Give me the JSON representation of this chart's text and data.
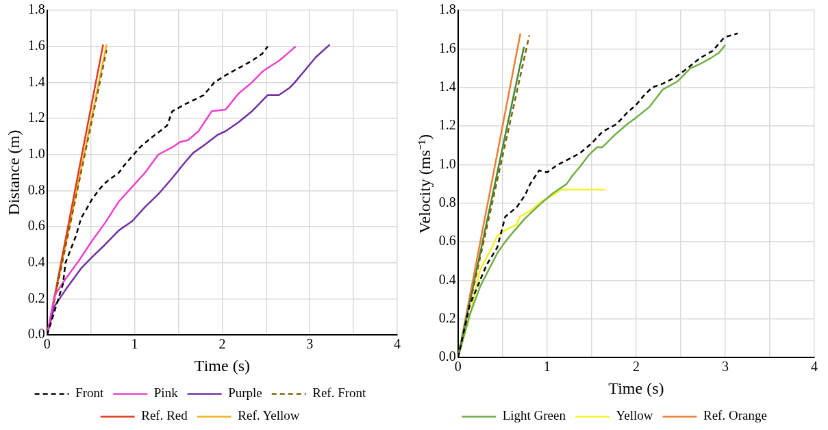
{
  "chart_data": [
    {
      "type": "line",
      "xlabel": "Time (s)",
      "ylabel": "Distance (m)",
      "xlim": [
        0,
        4
      ],
      "ylim": [
        0,
        1.8
      ],
      "xticks": [
        0,
        {
          "value": 0.5,
          "label": null
        },
        1,
        {
          "value": 1.5,
          "label": null
        },
        2,
        {
          "value": 2.5,
          "label": null
        },
        3,
        {
          "value": 3.5,
          "label": null
        },
        4
      ],
      "yticks": [
        {
          "value": 0,
          "label": "0.0"
        },
        {
          "value": 0.2,
          "label": "0.2"
        },
        {
          "value": 0.4,
          "label": "0.4"
        },
        {
          "value": 0.6,
          "label": "0.6"
        },
        {
          "value": 0.8,
          "label": "0.8"
        },
        {
          "value": 1,
          "label": "1.0"
        },
        {
          "value": 1.2,
          "label": "1.2"
        },
        {
          "value": 1.4,
          "label": "1.4"
        },
        {
          "value": 1.6,
          "label": "1.6"
        },
        {
          "value": 1.8,
          "label": "1.8"
        }
      ],
      "grid": true,
      "legend": "bottom",
      "marker": "none",
      "series": [
        {
          "name": "Front",
          "color": "#000000",
          "line_style": "dashed",
          "x": [
            0,
            0.18,
            0.21,
            0.33,
            0.39,
            0.44,
            0.51,
            0.6,
            0.68,
            0.82,
            0.88,
            0.97,
            1.06,
            1.18,
            1.37,
            1.43,
            1.58,
            1.79,
            1.91,
            2.04,
            2.19,
            2.34,
            2.46,
            2.52
          ],
          "values": [
            0,
            0.28,
            0.4,
            0.55,
            0.65,
            0.69,
            0.75,
            0.81,
            0.85,
            0.9,
            0.94,
            0.99,
            1.04,
            1.09,
            1.16,
            1.24,
            1.28,
            1.33,
            1.4,
            1.44,
            1.48,
            1.52,
            1.56,
            1.6
          ]
        },
        {
          "name": "Pink",
          "color": "#ee3fcf",
          "x": [
            0,
            0.085,
            0.21,
            0.36,
            0.51,
            0.66,
            0.82,
            0.97,
            1.12,
            1.27,
            1.43,
            1.52,
            1.61,
            1.73,
            1.88,
            2.04,
            2.19,
            2.34,
            2.46,
            2.52,
            2.65,
            2.77,
            2.84
          ],
          "values": [
            0,
            0.22,
            0.31,
            0.41,
            0.52,
            0.62,
            0.74,
            0.82,
            0.9,
            1,
            1.04,
            1.07,
            1.08,
            1.13,
            1.24,
            1.25,
            1.34,
            1.4,
            1.46,
            1.48,
            1.52,
            1.57,
            1.6
          ]
        },
        {
          "name": "Purple",
          "color": "#7030a0",
          "x": [
            0,
            0.085,
            0.21,
            0.3,
            0.39,
            0.51,
            0.66,
            0.82,
            0.97,
            1.12,
            1.27,
            1.43,
            1.58,
            1.67,
            1.79,
            1.95,
            2.04,
            2.19,
            2.34,
            2.52,
            2.65,
            2.77,
            2.83,
            2.95,
            3.07,
            3.23
          ],
          "values": [
            0,
            0.16,
            0.25,
            0.31,
            0.37,
            0.43,
            0.5,
            0.58,
            0.63,
            0.71,
            0.78,
            0.87,
            0.96,
            1.01,
            1.05,
            1.11,
            1.13,
            1.18,
            1.24,
            1.33,
            1.33,
            1.37,
            1.4,
            1.47,
            1.54,
            1.61
          ]
        },
        {
          "name": "Ref. Front",
          "color": "#806000",
          "line_style": "dashed",
          "x": [
            0,
            0.68
          ],
          "values": [
            0,
            1.58
          ]
        },
        {
          "name": "Ref. Red",
          "color": "#e03a1a",
          "x": [
            0,
            0.64
          ],
          "values": [
            0,
            1.61
          ]
        },
        {
          "name": "Ref. Yellow",
          "color": "#f2b01e",
          "x": [
            0,
            0.68
          ],
          "values": [
            0,
            1.61
          ]
        }
      ]
    },
    {
      "type": "line",
      "xlabel": "Time (s)",
      "ylabel": "Velocity (ms⁻¹)",
      "xlim": [
        0,
        4
      ],
      "ylim": [
        0,
        1.8
      ],
      "xticks": [
        0,
        {
          "value": 0.5,
          "label": null
        },
        1,
        {
          "value": 1.5,
          "label": null
        },
        2,
        {
          "value": 2.5,
          "label": null
        },
        3,
        {
          "value": 3.5,
          "label": null
        },
        4
      ],
      "yticks": [
        {
          "value": 0,
          "label": "0.0"
        },
        {
          "value": 0.2,
          "label": "0.2"
        },
        {
          "value": 0.4,
          "label": "0.4"
        },
        {
          "value": 0.6,
          "label": "0.6"
        },
        {
          "value": 0.8,
          "label": "0.8"
        },
        {
          "value": 1,
          "label": "1.0"
        },
        {
          "value": 1.2,
          "label": "1.2"
        },
        {
          "value": 1.4,
          "label": "1.4"
        },
        {
          "value": 1.6,
          "label": "1.6"
        },
        {
          "value": 1.8,
          "label": "1.8"
        }
      ],
      "grid": true,
      "legend": "bottom",
      "marker": "none",
      "series": [
        {
          "color": "#000000",
          "line_style": "dashed",
          "x": [
            0,
            0.13,
            0.22,
            0.32,
            0.44,
            0.53,
            0.66,
            0.75,
            0.81,
            0.91,
            1,
            1.12,
            1.25,
            1.37,
            1.5,
            1.62,
            1.78,
            1.9,
            2,
            2.09,
            2.18,
            2.3,
            2.43,
            2.55,
            2.71,
            2.86,
            2.99,
            3.14
          ],
          "values": [
            0,
            0.27,
            0.37,
            0.48,
            0.57,
            0.73,
            0.78,
            0.84,
            0.9,
            0.97,
            0.96,
            1,
            1.03,
            1.06,
            1.11,
            1.17,
            1.21,
            1.27,
            1.31,
            1.36,
            1.4,
            1.42,
            1.45,
            1.49,
            1.55,
            1.59,
            1.66,
            1.68
          ]
        },
        {
          "color": "#806000",
          "line_style": "dashed",
          "x": [
            0,
            0.8
          ],
          "values": [
            0,
            1.67
          ]
        },
        {
          "color": "#3c8c3c",
          "x": [
            0,
            0.74
          ],
          "values": [
            0,
            1.61
          ]
        },
        {
          "name": "Light Green",
          "color": "#70ad47",
          "x": [
            0,
            0.13,
            0.25,
            0.35,
            0.44,
            0.53,
            0.6,
            0.75,
            0.91,
            1.06,
            1.22,
            1.28,
            1.37,
            1.47,
            1.56,
            1.62,
            1.75,
            1.9,
            1.99,
            2.15,
            2.3,
            2.46,
            2.61,
            2.71,
            2.83,
            2.93,
            3
          ],
          "values": [
            0,
            0.22,
            0.37,
            0.46,
            0.54,
            0.6,
            0.64,
            0.72,
            0.79,
            0.85,
            0.9,
            0.94,
            0.99,
            1.05,
            1.09,
            1.09,
            1.15,
            1.21,
            1.24,
            1.3,
            1.39,
            1.43,
            1.5,
            1.52,
            1.55,
            1.58,
            1.62
          ]
        },
        {
          "name": "Yellow",
          "color": "#f5f022",
          "x": [
            0,
            0.13,
            0.25,
            0.38,
            0.44,
            0.53,
            0.66,
            0.69,
            0.81,
            0.94,
            1.06,
            1.16,
            1.65
          ],
          "values": [
            0,
            0.21,
            0.46,
            0.57,
            0.63,
            0.66,
            0.69,
            0.73,
            0.76,
            0.81,
            0.84,
            0.87,
            0.87
          ]
        },
        {
          "name": "Ref. Orange",
          "color": "#ed7d31",
          "x": [
            0,
            0.7
          ],
          "values": [
            0,
            1.68
          ]
        }
      ]
    }
  ]
}
